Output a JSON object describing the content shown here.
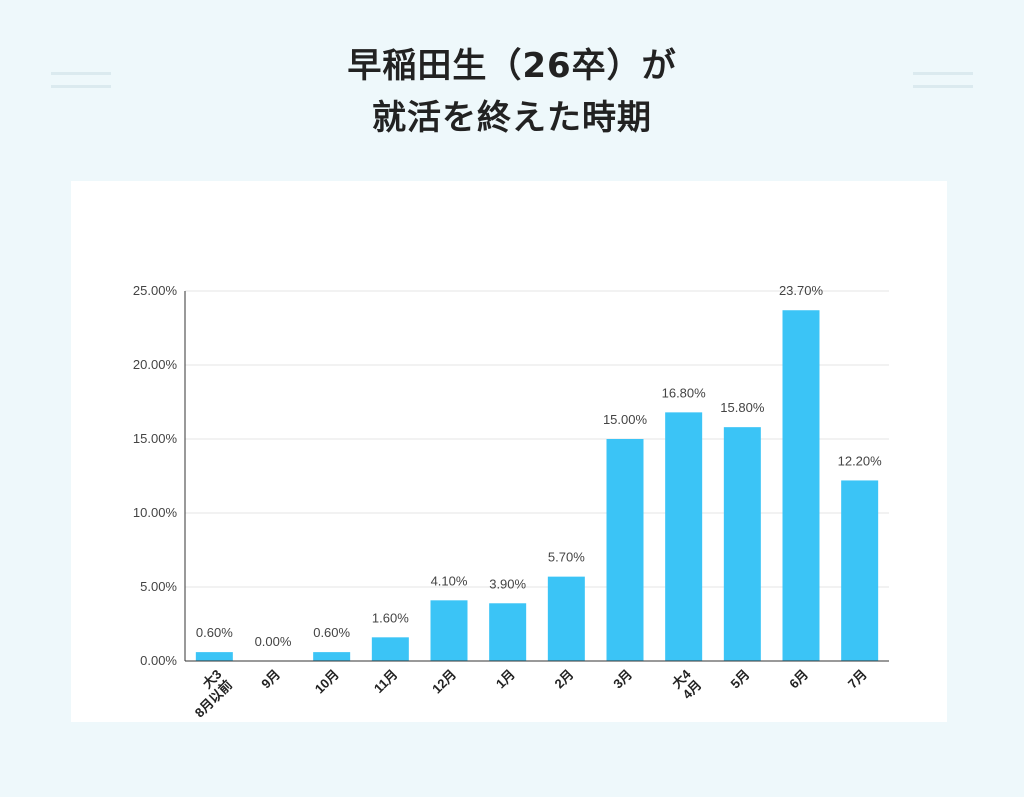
{
  "title": {
    "line1": "早稲田生（26卒）が",
    "line2": "就活を終えた時期"
  },
  "colors": {
    "background": "#eef8fb",
    "bar": "#3bc4f6",
    "text": "#222222"
  },
  "chart_data": {
    "type": "bar",
    "categories": [
      [
        "大3",
        "8月以前"
      ],
      [
        "9月"
      ],
      [
        "10月"
      ],
      [
        "11月"
      ],
      [
        "12月"
      ],
      [
        "1月"
      ],
      [
        "2月"
      ],
      [
        "3月"
      ],
      [
        "大4",
        "4月"
      ],
      [
        "5月"
      ],
      [
        "6月"
      ],
      [
        "7月"
      ]
    ],
    "values": [
      0.6,
      0.0,
      0.6,
      1.6,
      4.1,
      3.9,
      5.7,
      15.0,
      16.8,
      15.8,
      23.7,
      12.2
    ],
    "data_labels": [
      "0.60%",
      "0.00%",
      "0.60%",
      "1.60%",
      "4.10%",
      "3.90%",
      "5.70%",
      "15.00%",
      "16.80%",
      "15.80%",
      "23.70%",
      "12.20%"
    ],
    "yticks": [
      0,
      5,
      10,
      15,
      20,
      25
    ],
    "ytick_labels": [
      "0.00%",
      "5.00%",
      "10.00%",
      "15.00%",
      "20.00%",
      "25.00%"
    ],
    "ylim": [
      0,
      25
    ],
    "grid": true,
    "legend": "none"
  }
}
